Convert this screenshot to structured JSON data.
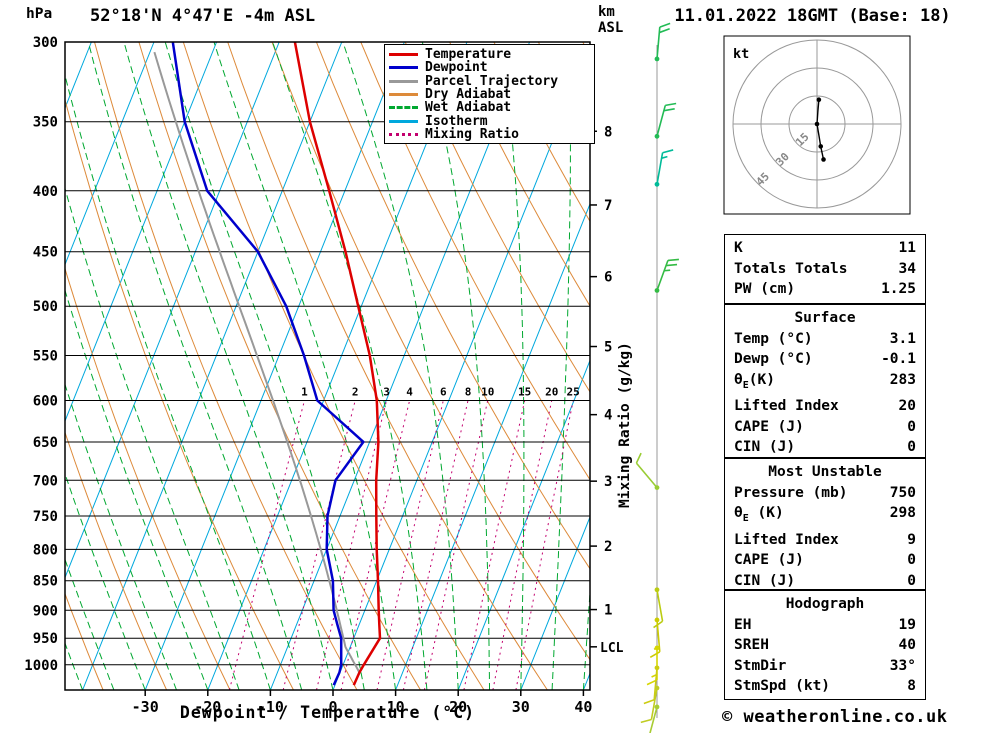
{
  "header": {
    "pressure_unit": "hPa",
    "title": "52°18'N 4°47'E -4m ASL",
    "km_label": "km",
    "asl_label": "ASL",
    "datetime": "11.01.2022 18GMT (Base: 18)"
  },
  "legend": {
    "items": [
      {
        "name": "temperature",
        "label": "Temperature",
        "color": "#dd0000",
        "style": "solid"
      },
      {
        "name": "dewpoint",
        "label": "Dewpoint",
        "color": "#0000cc",
        "style": "solid"
      },
      {
        "name": "parcel-trajectory",
        "label": "Parcel Trajectory",
        "color": "#999999",
        "style": "solid"
      },
      {
        "name": "dry-adiabat",
        "label": "Dry Adiabat",
        "color": "#dd8a3a",
        "style": "solid"
      },
      {
        "name": "wet-adiabat",
        "label": "Wet Adiabat",
        "color": "#00a830",
        "style": "dashed"
      },
      {
        "name": "isotherm",
        "label": "Isotherm",
        "color": "#00a8dd",
        "style": "solid"
      },
      {
        "name": "mixing-ratio",
        "label": "Mixing Ratio",
        "color": "#c3006e",
        "style": "dotted"
      }
    ]
  },
  "axes": {
    "xlabel": "Dewpoint / Temperature (°C)",
    "right_label": "Mixing Ratio (g/kg)",
    "lcl_label": "LCL"
  },
  "chart_data": {
    "type": "skewt_log_p_sounding",
    "title": "52°18'N 4°47'E -4m ASL",
    "datetime": "11.01.2022 18GMT (Base: 18)",
    "pressure_gridlines_hpa": [
      300,
      350,
      400,
      450,
      500,
      550,
      600,
      650,
      700,
      750,
      800,
      850,
      900,
      950,
      1000
    ],
    "pressure_axis_range_hpa": [
      300,
      1050
    ],
    "temp_ticks_c": [
      -30,
      -20,
      -10,
      0,
      10,
      20,
      30,
      40
    ],
    "km_asl_ticks": [
      8,
      7,
      6,
      5,
      4,
      3,
      2,
      1
    ],
    "mixing_ratio_lines_g_kg": [
      1,
      2,
      3,
      4,
      6,
      8,
      10,
      15,
      20,
      25
    ],
    "sounding": {
      "pressure_hpa": [
        1040,
        1015,
        1000,
        950,
        925,
        900,
        850,
        800,
        750,
        700,
        650,
        600,
        550,
        500,
        450,
        400,
        350,
        300
      ],
      "temperature_c": [
        3.0,
        3.1,
        3.3,
        4.2,
        3.2,
        2.2,
        0.2,
        -2.0,
        -4.2,
        -6.5,
        -8.6,
        -11.5,
        -15.5,
        -20.5,
        -26.0,
        -32.5,
        -40.0,
        -47.5
      ],
      "dewpoint_c": [
        -0.2,
        -0.1,
        -0.3,
        -2.0,
        -3.5,
        -5.0,
        -7.0,
        -10.0,
        -12.0,
        -13.0,
        -11.0,
        -21.0,
        -26.0,
        -32.0,
        -40.0,
        -52.0,
        -60.0,
        -67.0
      ]
    },
    "parcel_surface": {
      "pressure_hpa": 1015,
      "temp_c": 3.1,
      "dewp_c": -0.1
    },
    "colors": {
      "temperature": "#dd0000",
      "dewpoint": "#0000cc",
      "parcel": "#999999",
      "dry_adiabat": "#dd8a3a",
      "wet_adiabat": "#00a830",
      "isotherm": "#00a8dd",
      "mixing_ratio": "#c3006e"
    }
  },
  "winds": [
    {
      "pressure_hpa": 310,
      "speed_kt": 20,
      "dir_deg": 5,
      "color": "#22bb55"
    },
    {
      "pressure_hpa": 360,
      "speed_kt": 20,
      "dir_deg": 15,
      "color": "#22bb55"
    },
    {
      "pressure_hpa": 395,
      "speed_kt": 15,
      "dir_deg": 10,
      "color": "#00bb99"
    },
    {
      "pressure_hpa": 485,
      "speed_kt": 25,
      "dir_deg": 20,
      "color": "#33bb44"
    },
    {
      "pressure_hpa": 710,
      "speed_kt": 10,
      "dir_deg": 320,
      "color": "#99cc33"
    },
    {
      "pressure_hpa": 865,
      "speed_kt": 10,
      "dir_deg": 170,
      "color": "#bbcc11"
    },
    {
      "pressure_hpa": 917,
      "speed_kt": 15,
      "dir_deg": 175,
      "color": "#cccc00"
    },
    {
      "pressure_hpa": 968,
      "speed_kt": 15,
      "dir_deg": 180,
      "color": "#d6d600"
    },
    {
      "pressure_hpa": 1006,
      "speed_kt": 10,
      "dir_deg": 185,
      "color": "#cccc11"
    },
    {
      "pressure_hpa": 1046,
      "speed_kt": 10,
      "dir_deg": 190,
      "color": "#c0cc22"
    },
    {
      "pressure_hpa": 1085,
      "speed_kt": 8,
      "dir_deg": 195,
      "color": "#a8cc33"
    }
  ],
  "hodograph": {
    "unit_label": "kt",
    "rings_kt": [
      15,
      30,
      45
    ],
    "trace_uv_kt": [
      [
        1,
        13
      ],
      [
        0.5,
        7
      ],
      [
        0,
        0
      ],
      [
        1,
        -6
      ],
      [
        2,
        -12
      ],
      [
        3.5,
        -19
      ]
    ],
    "dots_uv_kt": [
      [
        1,
        13
      ],
      [
        0,
        0
      ],
      [
        2,
        -12
      ],
      [
        3.5,
        -19
      ]
    ]
  },
  "tables": [
    {
      "name": "indices",
      "header": null,
      "rows": [
        {
          "label": "K",
          "value": "11"
        },
        {
          "label": "Totals Totals",
          "value": "34"
        },
        {
          "label": "PW (cm)",
          "value": "1.25"
        }
      ]
    },
    {
      "name": "surface",
      "header": "Surface",
      "rows": [
        {
          "label": "Temp (°C)",
          "value": "3.1"
        },
        {
          "label": "Dewp (°C)",
          "value": "-0.1"
        },
        {
          "label_pre": "θ",
          "label_sub": "E",
          "label_post": "(K)",
          "value": "283"
        },
        {
          "label": "Lifted Index",
          "value": "20"
        },
        {
          "label": "CAPE (J)",
          "value": "0"
        },
        {
          "label": "CIN (J)",
          "value": "0"
        }
      ]
    },
    {
      "name": "most-unstable",
      "header": "Most Unstable",
      "rows": [
        {
          "label": "Pressure (mb)",
          "value": "750"
        },
        {
          "label_pre": "θ",
          "label_sub": "E",
          "label_post": " (K)",
          "value": "298"
        },
        {
          "label": "Lifted Index",
          "value": "9"
        },
        {
          "label": "CAPE (J)",
          "value": "0"
        },
        {
          "label": "CIN (J)",
          "value": "0"
        }
      ]
    },
    {
      "name": "hodograph-stats",
      "header": "Hodograph",
      "rows": [
        {
          "label": "EH",
          "value": "19"
        },
        {
          "label": "SREH",
          "value": "40"
        },
        {
          "label": "StmDir",
          "value": "33°"
        },
        {
          "label": "StmSpd (kt)",
          "value": "8"
        }
      ]
    }
  ],
  "footer": {
    "copyright": "© weatheronline.co.uk"
  }
}
